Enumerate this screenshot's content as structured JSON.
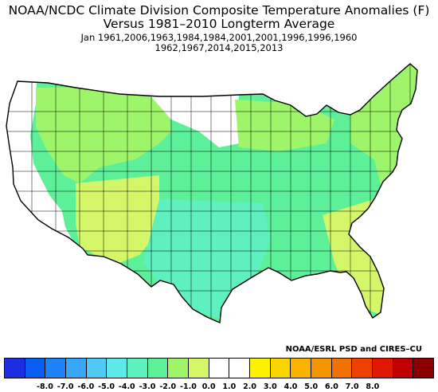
{
  "title": {
    "line1": "NOAA/NCDC Climate Division Composite Temperature Anomalies (F)",
    "line2": "Versus 1981–2010 Longterm Average",
    "line3": "Jan   1961,2006,1963,1984,1984,2001,2001,1996,1996,1960",
    "line4": "1962,1967,2014,2015,2013"
  },
  "credit": "NOAA/ESRL PSD and CIRES–CU",
  "colorbar": {
    "colors": [
      "#1c2ee0",
      "#0b5cf0",
      "#1e82f8",
      "#3aa6fa",
      "#52c9f4",
      "#5ee8e8",
      "#5ef0be",
      "#5ef098",
      "#9ef56a",
      "#d4f76a",
      "#ffffff",
      "#ffffff",
      "#fff200",
      "#fcd400",
      "#f8b400",
      "#f49400",
      "#f07000",
      "#ec4000",
      "#e01800",
      "#c00000",
      "#8a0000"
    ],
    "ticks": [
      "-8.0",
      "-7.0",
      "-6.0",
      "-5.0",
      "-4.0",
      "-3.0",
      "-2.0",
      "-1.0",
      "0.0",
      "1.0",
      "2.0",
      "3.0",
      "4.0",
      "5.0",
      "6.0",
      "7.0",
      "8.0"
    ]
  },
  "map_colors": {
    "land_neutral": "#ffffff",
    "light_green": "#9ef56a",
    "yellow_green": "#d4f76a",
    "mint": "#5ef098",
    "aqua": "#5ef0be"
  }
}
